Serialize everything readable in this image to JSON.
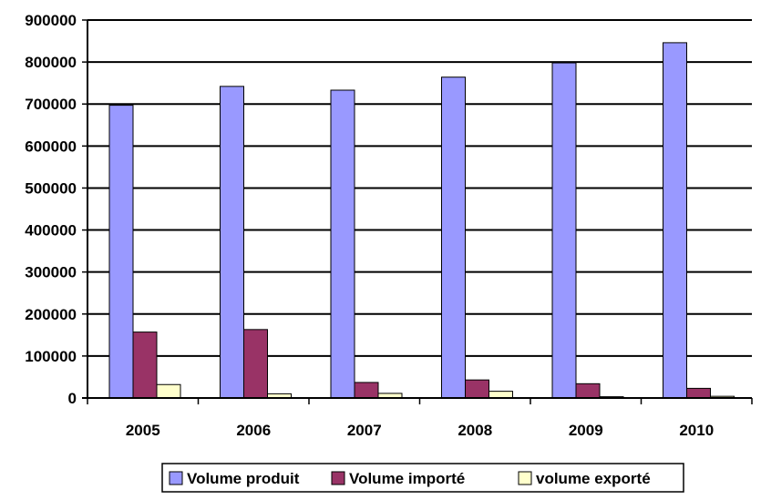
{
  "chart_data": {
    "type": "bar",
    "title": "",
    "xlabel": "",
    "ylabel": "",
    "categories": [
      "2005",
      "2006",
      "2007",
      "2008",
      "2009",
      "2010"
    ],
    "ylim": [
      0,
      900000
    ],
    "y_ticks": [
      "0",
      "100000",
      "200000",
      "300000",
      "400000",
      "500000",
      "600000",
      "700000",
      "800000",
      "900000"
    ],
    "grid": true,
    "legend_position": "bottom",
    "series": [
      {
        "name": "Volume produit",
        "color": "#9999ff",
        "values": [
          697000,
          742000,
          733000,
          764000,
          798000,
          846000
        ]
      },
      {
        "name": "Volume importé",
        "color": "#993366",
        "values": [
          157000,
          163000,
          37000,
          43000,
          34000,
          23000
        ]
      },
      {
        "name": "volume exporté",
        "color": "#ffffcc",
        "values": [
          32000,
          10000,
          11000,
          16000,
          3000,
          4000
        ]
      }
    ]
  }
}
